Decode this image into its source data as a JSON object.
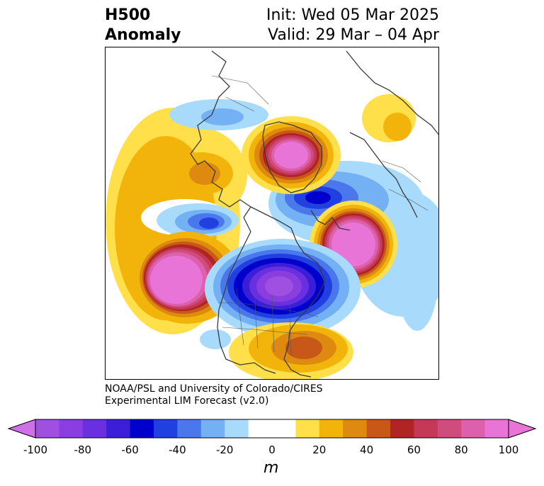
{
  "title": {
    "left_line1": "H500",
    "left_line2": "Anomaly",
    "right_line1": "Init: Wed 05 Mar 2025",
    "right_line2": "Valid: 29 Mar – 04 Apr"
  },
  "credit": {
    "line1": "NOAA/PSL and University of Colorado/CIRES",
    "line2": "Experimental LIM Forecast (v2.0)"
  },
  "colorbar": {
    "unit": "m",
    "tick_labels": [
      "-100",
      "-80",
      "-60",
      "-40",
      "-20",
      "0",
      "20",
      "40",
      "60",
      "80",
      "100"
    ],
    "bins": [
      {
        "lo": -100,
        "hi": -90,
        "color": "#a050e0"
      },
      {
        "lo": -90,
        "hi": -80,
        "color": "#8a3ee0"
      },
      {
        "lo": -80,
        "hi": -70,
        "color": "#6a30e0"
      },
      {
        "lo": -70,
        "hi": -60,
        "color": "#3a1ed8"
      },
      {
        "lo": -60,
        "hi": -50,
        "color": "#0000cc"
      },
      {
        "lo": -50,
        "hi": -40,
        "color": "#2040e0"
      },
      {
        "lo": -40,
        "hi": -30,
        "color": "#4a78ec"
      },
      {
        "lo": -30,
        "hi": -20,
        "color": "#74b0f4"
      },
      {
        "lo": -20,
        "hi": -10,
        "color": "#a8dafc"
      },
      {
        "lo": -10,
        "hi": 10,
        "color": "#ffffff"
      },
      {
        "lo": 10,
        "hi": 20,
        "color": "#ffe04a"
      },
      {
        "lo": 20,
        "hi": 30,
        "color": "#f2b40a"
      },
      {
        "lo": 30,
        "hi": 40,
        "color": "#de8a10"
      },
      {
        "lo": 40,
        "hi": 50,
        "color": "#c85818"
      },
      {
        "lo": 50,
        "hi": 60,
        "color": "#b02424"
      },
      {
        "lo": 60,
        "hi": 70,
        "color": "#c43858"
      },
      {
        "lo": 70,
        "hi": 80,
        "color": "#d04c7c"
      },
      {
        "lo": 80,
        "hi": 90,
        "color": "#dc60ac"
      },
      {
        "lo": 90,
        "hi": 100,
        "color": "#e874d8"
      }
    ],
    "under_color": "#d070e8",
    "over_color": "#e874d8"
  },
  "anomalies": [
    {
      "name": "trough-central-north-america",
      "sign": "negative",
      "peak": -90
    },
    {
      "name": "ridge-north-pacific",
      "sign": "positive",
      "peak": 95
    },
    {
      "name": "ridge-north-atlantic",
      "sign": "positive",
      "peak": 95
    },
    {
      "name": "ridge-greenland",
      "sign": "positive",
      "peak": 90
    },
    {
      "name": "trough-europe",
      "sign": "negative",
      "peak": -60
    },
    {
      "name": "trough-alaska",
      "sign": "negative",
      "peak": -60
    },
    {
      "name": "ridge-gulf-of-mexico",
      "sign": "positive",
      "peak": 45
    },
    {
      "name": "ridge-siberia",
      "sign": "positive",
      "peak": 40
    }
  ]
}
